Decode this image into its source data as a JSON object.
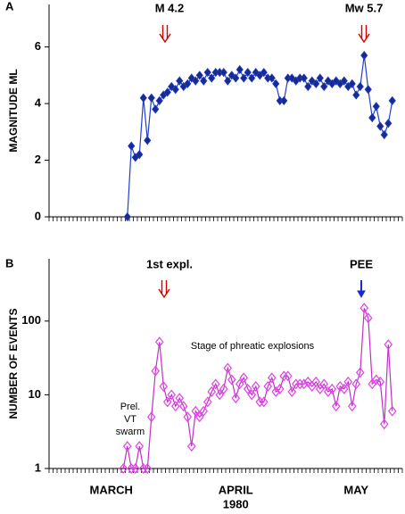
{
  "chart_data": [
    {
      "type": "line",
      "panel_label": "A",
      "ylabel": "MAGNITUDE ML",
      "color": "#1f3fd0",
      "marker_color": "#1a2a8c",
      "categories": [
        null,
        null,
        null,
        null,
        null,
        null,
        null,
        null,
        null,
        null,
        null,
        null,
        null,
        null,
        null,
        null,
        null,
        null,
        null,
        null,
        null,
        null,
        null,
        null,
        null,
        null,
        null,
        null,
        null,
        null,
        null,
        null,
        null,
        null,
        null,
        null,
        null,
        null,
        null,
        null,
        null,
        null,
        null,
        null,
        null,
        null,
        null,
        null,
        null,
        null,
        null,
        null,
        null,
        null,
        null,
        null,
        null,
        null,
        null,
        null,
        null,
        null,
        null,
        null,
        null,
        null,
        null,
        null,
        null,
        null,
        null,
        null,
        null,
        null,
        null,
        null,
        null,
        null,
        null,
        null,
        null,
        null,
        null,
        null,
        null,
        null,
        null,
        null
      ],
      "values": [
        null,
        null,
        null,
        null,
        null,
        null,
        null,
        null,
        null,
        null,
        null,
        null,
        null,
        null,
        null,
        null,
        null,
        null,
        null,
        0,
        2.5,
        2.1,
        2.2,
        4.2,
        2.7,
        4.2,
        3.8,
        4.1,
        4.3,
        4.4,
        4.6,
        4.5,
        4.8,
        4.6,
        4.7,
        4.9,
        4.8,
        5.0,
        4.8,
        5.1,
        4.9,
        5.1,
        5.1,
        5.1,
        4.8,
        5.0,
        4.9,
        5.2,
        4.9,
        5.1,
        4.9,
        5.1,
        5.0,
        5.1,
        4.9,
        4.9,
        4.7,
        4.1,
        4.1,
        4.9,
        4.9,
        4.8,
        4.9,
        4.9,
        4.6,
        4.8,
        4.7,
        4.9,
        4.6,
        4.8,
        4.7,
        4.8,
        4.7,
        4.8,
        4.6,
        4.7,
        4.3,
        4.6,
        5.7,
        4.5,
        3.5,
        3.9,
        3.2,
        2.9,
        3.3,
        4.1,
        null,
        null
      ],
      "ylim": [
        0,
        7.5
      ],
      "yticks": [
        0,
        2,
        4,
        6
      ],
      "annotations": [
        {
          "text": "M 4.2"
        },
        {
          "text": "Mw 5.7"
        }
      ]
    },
    {
      "type": "line",
      "panel_label": "B",
      "ylabel": "NUMBER OF EVENTS",
      "color": "#c030c8",
      "marker_color": "#e040e8",
      "log_scale": true,
      "categories": [
        null,
        null,
        null,
        null,
        null,
        null,
        null,
        null,
        null,
        null,
        null,
        null,
        null,
        null,
        null,
        "MARCH",
        null,
        null,
        null,
        null,
        null,
        null,
        null,
        null,
        null,
        null,
        null,
        null,
        null,
        null,
        null,
        null,
        null,
        null,
        null,
        null,
        null,
        null,
        null,
        null,
        null,
        null,
        null,
        null,
        null,
        null,
        "APRIL",
        null,
        null,
        null,
        null,
        null,
        null,
        null,
        null,
        null,
        null,
        null,
        null,
        null,
        null,
        null,
        null,
        null,
        null,
        null,
        null,
        null,
        null,
        null,
        null,
        null,
        null,
        null,
        null,
        null,
        "MAY",
        null,
        null,
        null,
        null,
        null,
        null,
        null,
        null,
        null,
        null,
        null
      ],
      "xlabel": "1980",
      "values": [
        null,
        null,
        null,
        null,
        null,
        null,
        null,
        null,
        null,
        null,
        null,
        null,
        null,
        null,
        null,
        null,
        null,
        null,
        1,
        2,
        1,
        1,
        2,
        1,
        1,
        5,
        21,
        52,
        13,
        8,
        10,
        7,
        9,
        7,
        5,
        2,
        6,
        5,
        6,
        8,
        11,
        14,
        10,
        12,
        23,
        16,
        9,
        14,
        17,
        12,
        10,
        13,
        8,
        8,
        13,
        17,
        11,
        12,
        18,
        18,
        11,
        14,
        14,
        14,
        15,
        13,
        15,
        12,
        14,
        11,
        12,
        7,
        13,
        12,
        15,
        7,
        14,
        20,
        150,
        110,
        14,
        16,
        15,
        4,
        48,
        6,
        null,
        null
      ],
      "ylim": [
        1,
        700
      ],
      "yticks": [
        1,
        10,
        100
      ],
      "annotations": [
        {
          "text": "1st expl."
        },
        {
          "text": "PEE"
        },
        {
          "text": "Stage of phreatic explosions"
        },
        {
          "text": [
            "Prel.",
            "VT",
            "swarm"
          ]
        }
      ]
    }
  ]
}
